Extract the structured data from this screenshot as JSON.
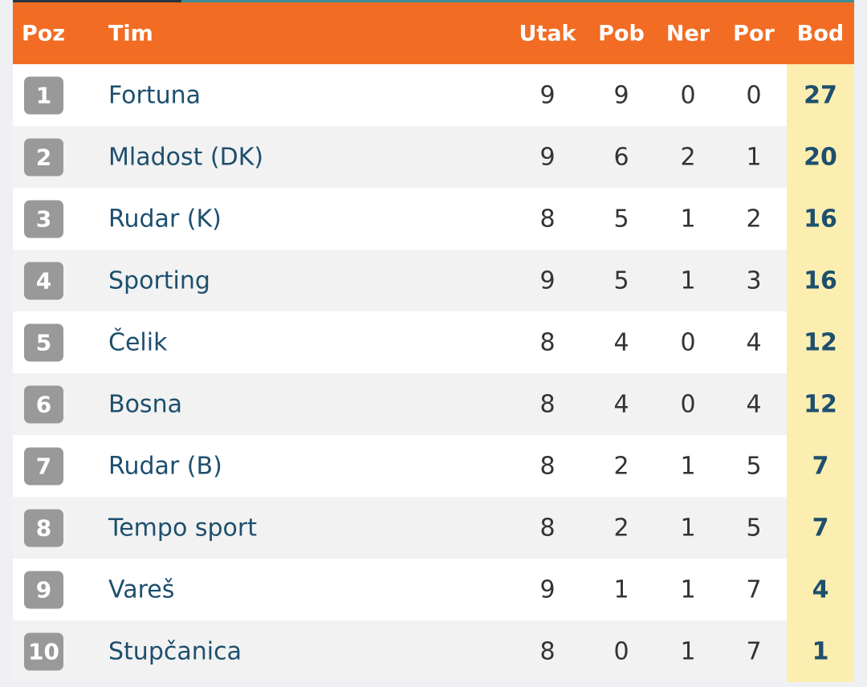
{
  "colors": {
    "header": "#f26c23",
    "points_column": "#fbeeb0",
    "team_text": "#1d4f6e",
    "badge": "#999999"
  },
  "headers": {
    "pos": "Poz",
    "team": "Tim",
    "played": "Utak",
    "won": "Pob",
    "drawn": "Ner",
    "lost": "Por",
    "points": "Bod"
  },
  "rows": [
    {
      "pos": "1",
      "team": "Fortuna",
      "played": "9",
      "won": "9",
      "drawn": "0",
      "lost": "0",
      "points": "27"
    },
    {
      "pos": "2",
      "team": "Mladost (DK)",
      "played": "9",
      "won": "6",
      "drawn": "2",
      "lost": "1",
      "points": "20"
    },
    {
      "pos": "3",
      "team": "Rudar (K)",
      "played": "8",
      "won": "5",
      "drawn": "1",
      "lost": "2",
      "points": "16"
    },
    {
      "pos": "4",
      "team": "Sporting",
      "played": "9",
      "won": "5",
      "drawn": "1",
      "lost": "3",
      "points": "16"
    },
    {
      "pos": "5",
      "team": "Čelik",
      "played": "8",
      "won": "4",
      "drawn": "0",
      "lost": "4",
      "points": "12"
    },
    {
      "pos": "6",
      "team": "Bosna",
      "played": "8",
      "won": "4",
      "drawn": "0",
      "lost": "4",
      "points": "12"
    },
    {
      "pos": "7",
      "team": "Rudar (B)",
      "played": "8",
      "won": "2",
      "drawn": "1",
      "lost": "5",
      "points": "7"
    },
    {
      "pos": "8",
      "team": "Tempo sport",
      "played": "8",
      "won": "2",
      "drawn": "1",
      "lost": "5",
      "points": "7"
    },
    {
      "pos": "9",
      "team": "Vareš",
      "played": "9",
      "won": "1",
      "drawn": "1",
      "lost": "7",
      "points": "4"
    },
    {
      "pos": "10",
      "team": "Stupčanica",
      "played": "8",
      "won": "0",
      "drawn": "1",
      "lost": "7",
      "points": "1"
    }
  ]
}
